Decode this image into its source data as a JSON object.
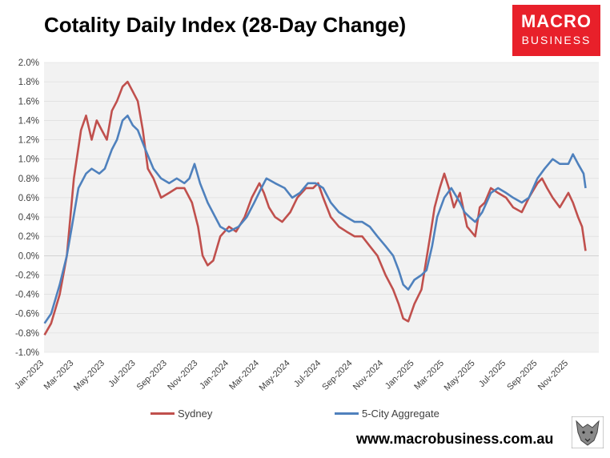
{
  "title": "Cotality Daily Index (28-Day Change)",
  "brand": {
    "line1": "MACRO",
    "line2": "BUSINESS",
    "color": "#e8202a"
  },
  "website": "www.macrobusiness.com.au",
  "logo_icon": "wolf-icon",
  "colors": {
    "sydney": "#c0504d",
    "aggregate": "#4f81bd",
    "plot_bg": "#f2f2f2",
    "grid": "#d9d9d9"
  },
  "chart_data": {
    "type": "line",
    "title": "Cotality Daily Index (28-Day Change)",
    "xlabel": "",
    "ylabel": "",
    "ylim": [
      -1.0,
      2.0
    ],
    "y_ticks": [
      -1.0,
      -0.8,
      -0.6,
      -0.4,
      -0.2,
      0.0,
      0.2,
      0.4,
      0.6,
      0.8,
      1.0,
      1.2,
      1.4,
      1.6,
      1.8,
      2.0
    ],
    "y_tick_labels": [
      "-1.0%",
      "-0.8%",
      "-0.6%",
      "-0.4%",
      "-0.2%",
      "0.0%",
      "0.2%",
      "0.4%",
      "0.6%",
      "0.8%",
      "1.0%",
      "1.2%",
      "1.4%",
      "1.6%",
      "1.8%",
      "2.0%"
    ],
    "xlim": [
      "2023-01-01",
      "2025-12-31"
    ],
    "x_tick_labels": [
      "Jan-2023",
      "Mar-2023",
      "May-2023",
      "Jul-2023",
      "Sep-2023",
      "Nov-2023",
      "Jan-2024",
      "Mar-2024",
      "May-2024",
      "Jul-2024",
      "Sep-2024",
      "Nov-2024",
      "Jan-2025",
      "Mar-2025",
      "May-2025",
      "Jul-2025",
      "Sep-2025",
      "Nov-2025"
    ],
    "x_tick_dates": [
      "2023-01-01",
      "2023-03-01",
      "2023-05-01",
      "2023-07-01",
      "2023-09-01",
      "2023-11-01",
      "2024-01-01",
      "2024-03-01",
      "2024-05-01",
      "2024-07-01",
      "2024-09-01",
      "2024-11-01",
      "2025-01-01",
      "2025-03-01",
      "2025-05-01",
      "2025-07-01",
      "2025-09-01",
      "2025-11-01"
    ],
    "grid": "horizontal",
    "legend_position": "bottom",
    "series": [
      {
        "name": "Sydney",
        "x": [
          "2023-01-02",
          "2023-01-15",
          "2023-02-01",
          "2023-02-15",
          "2023-02-22",
          "2023-03-01",
          "2023-03-15",
          "2023-03-25",
          "2023-04-05",
          "2023-04-15",
          "2023-04-25",
          "2023-05-05",
          "2023-05-15",
          "2023-05-25",
          "2023-06-05",
          "2023-06-15",
          "2023-06-25",
          "2023-07-05",
          "2023-07-15",
          "2023-07-25",
          "2023-08-05",
          "2023-08-20",
          "2023-09-05",
          "2023-09-20",
          "2023-10-05",
          "2023-10-20",
          "2023-11-01",
          "2023-11-10",
          "2023-11-20",
          "2023-12-01",
          "2023-12-15",
          "2024-01-01",
          "2024-01-15",
          "2024-02-01",
          "2024-02-15",
          "2024-03-01",
          "2024-03-10",
          "2024-03-20",
          "2024-04-01",
          "2024-04-15",
          "2024-05-01",
          "2024-05-15",
          "2024-06-01",
          "2024-06-15",
          "2024-06-25",
          "2024-07-05",
          "2024-07-20",
          "2024-08-05",
          "2024-08-20",
          "2024-09-05",
          "2024-09-20",
          "2024-10-05",
          "2024-10-20",
          "2024-11-05",
          "2024-11-20",
          "2024-12-01",
          "2024-12-10",
          "2024-12-20",
          "2025-01-01",
          "2025-01-15",
          "2025-02-01",
          "2025-02-10",
          "2025-02-20",
          "2025-03-01",
          "2025-03-10",
          "2025-03-20",
          "2025-04-01",
          "2025-04-15",
          "2025-05-01",
          "2025-05-10",
          "2025-05-20",
          "2025-06-01",
          "2025-06-15",
          "2025-07-01",
          "2025-07-15",
          "2025-08-01",
          "2025-08-15",
          "2025-09-01",
          "2025-09-10",
          "2025-09-20",
          "2025-10-01",
          "2025-10-15",
          "2025-11-01",
          "2025-11-10",
          "2025-11-20",
          "2025-11-28",
          "2025-12-05"
        ],
        "y": [
          -0.82,
          -0.7,
          -0.4,
          0.0,
          0.4,
          0.8,
          1.3,
          1.45,
          1.2,
          1.4,
          1.3,
          1.2,
          1.5,
          1.6,
          1.75,
          1.8,
          1.7,
          1.6,
          1.3,
          0.9,
          0.8,
          0.6,
          0.65,
          0.7,
          0.7,
          0.55,
          0.3,
          0.0,
          -0.1,
          -0.05,
          0.2,
          0.3,
          0.25,
          0.4,
          0.6,
          0.75,
          0.65,
          0.5,
          0.4,
          0.35,
          0.45,
          0.6,
          0.7,
          0.7,
          0.75,
          0.6,
          0.4,
          0.3,
          0.25,
          0.2,
          0.2,
          0.1,
          0.0,
          -0.2,
          -0.35,
          -0.5,
          -0.65,
          -0.68,
          -0.5,
          -0.35,
          0.2,
          0.5,
          0.7,
          0.85,
          0.7,
          0.5,
          0.65,
          0.3,
          0.2,
          0.5,
          0.55,
          0.7,
          0.65,
          0.6,
          0.5,
          0.45,
          0.6,
          0.75,
          0.8,
          0.7,
          0.6,
          0.5,
          0.65,
          0.55,
          0.4,
          0.3,
          0.05
        ]
      },
      {
        "name": "5-City Aggregate",
        "x": [
          "2023-01-02",
          "2023-01-15",
          "2023-02-01",
          "2023-02-15",
          "2023-02-25",
          "2023-03-10",
          "2023-03-25",
          "2023-04-05",
          "2023-04-20",
          "2023-05-01",
          "2023-05-15",
          "2023-05-25",
          "2023-06-05",
          "2023-06-15",
          "2023-06-25",
          "2023-07-05",
          "2023-07-20",
          "2023-08-05",
          "2023-08-20",
          "2023-09-05",
          "2023-09-20",
          "2023-10-05",
          "2023-10-15",
          "2023-10-25",
          "2023-11-05",
          "2023-11-20",
          "2023-12-05",
          "2023-12-15",
          "2024-01-01",
          "2024-01-20",
          "2024-02-05",
          "2024-02-20",
          "2024-03-05",
          "2024-03-15",
          "2024-04-01",
          "2024-04-20",
          "2024-05-05",
          "2024-05-20",
          "2024-06-05",
          "2024-06-20",
          "2024-07-05",
          "2024-07-20",
          "2024-08-05",
          "2024-08-20",
          "2024-09-05",
          "2024-09-20",
          "2024-10-05",
          "2024-10-20",
          "2024-11-05",
          "2024-11-20",
          "2024-12-01",
          "2024-12-10",
          "2024-12-20",
          "2025-01-01",
          "2025-01-15",
          "2025-01-25",
          "2025-02-05",
          "2025-02-15",
          "2025-03-01",
          "2025-03-15",
          "2025-04-01",
          "2025-04-10",
          "2025-04-20",
          "2025-05-01",
          "2025-05-15",
          "2025-06-01",
          "2025-06-15",
          "2025-07-01",
          "2025-07-15",
          "2025-08-01",
          "2025-08-15",
          "2025-09-01",
          "2025-09-15",
          "2025-10-01",
          "2025-10-15",
          "2025-11-01",
          "2025-11-10",
          "2025-11-20",
          "2025-12-01",
          "2025-12-05"
        ],
        "y": [
          -0.7,
          -0.6,
          -0.3,
          0.0,
          0.3,
          0.7,
          0.85,
          0.9,
          0.85,
          0.9,
          1.1,
          1.2,
          1.4,
          1.45,
          1.35,
          1.3,
          1.1,
          0.9,
          0.8,
          0.75,
          0.8,
          0.75,
          0.8,
          0.95,
          0.75,
          0.55,
          0.4,
          0.3,
          0.25,
          0.3,
          0.4,
          0.55,
          0.7,
          0.8,
          0.75,
          0.7,
          0.6,
          0.65,
          0.75,
          0.75,
          0.7,
          0.55,
          0.45,
          0.4,
          0.35,
          0.35,
          0.3,
          0.2,
          0.1,
          0.0,
          -0.15,
          -0.3,
          -0.35,
          -0.25,
          -0.2,
          -0.15,
          0.1,
          0.4,
          0.6,
          0.7,
          0.55,
          0.45,
          0.4,
          0.35,
          0.45,
          0.65,
          0.7,
          0.65,
          0.6,
          0.55,
          0.6,
          0.8,
          0.9,
          1.0,
          0.95,
          0.95,
          1.05,
          0.95,
          0.85,
          0.7
        ]
      }
    ]
  }
}
